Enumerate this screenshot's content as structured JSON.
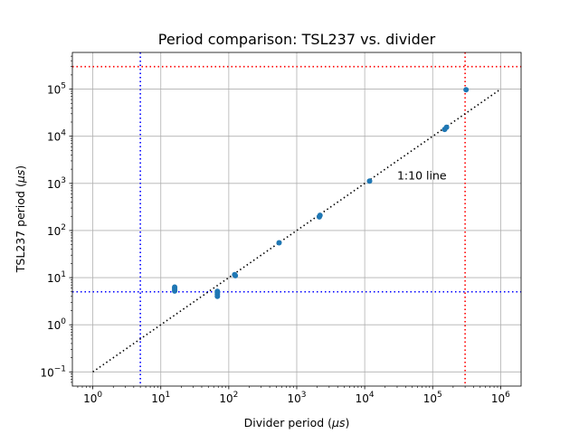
{
  "chart_data": {
    "type": "scatter",
    "title": "Period comparison: TSL237 vs. divider",
    "xlabel": "Divider period (",
    "xlabel_unit": "μs",
    "ylabel": "TSL237 period (",
    "ylabel_unit": "μs",
    "label_close": ")",
    "xscale": "log",
    "yscale": "log",
    "xlim": [
      0.5,
      2000000
    ],
    "ylim": [
      0.05,
      600000
    ],
    "grid": true,
    "x_ticks": [
      {
        "base": "10",
        "exp": "0",
        "value": 1
      },
      {
        "base": "10",
        "exp": "1",
        "value": 10
      },
      {
        "base": "10",
        "exp": "2",
        "value": 100
      },
      {
        "base": "10",
        "exp": "3",
        "value": 1000
      },
      {
        "base": "10",
        "exp": "4",
        "value": 10000
      },
      {
        "base": "10",
        "exp": "5",
        "value": 100000
      },
      {
        "base": "10",
        "exp": "6",
        "value": 1000000
      }
    ],
    "y_ticks": [
      {
        "base": "10",
        "exp": "−1",
        "value": 0.1
      },
      {
        "base": "10",
        "exp": "0",
        "value": 1
      },
      {
        "base": "10",
        "exp": "1",
        "value": 10
      },
      {
        "base": "10",
        "exp": "2",
        "value": 100
      },
      {
        "base": "10",
        "exp": "3",
        "value": 1000
      },
      {
        "base": "10",
        "exp": "4",
        "value": 10000
      },
      {
        "base": "10",
        "exp": "5",
        "value": 100000
      }
    ],
    "points": [
      {
        "x": 16,
        "y": 5.2
      },
      {
        "x": 16,
        "y": 5.6
      },
      {
        "x": 16,
        "y": 6.0
      },
      {
        "x": 16,
        "y": 6.3
      },
      {
        "x": 68,
        "y": 4.0
      },
      {
        "x": 68,
        "y": 4.4
      },
      {
        "x": 68,
        "y": 4.8
      },
      {
        "x": 68,
        "y": 5.1
      },
      {
        "x": 125,
        "y": 11
      },
      {
        "x": 122,
        "y": 11.6
      },
      {
        "x": 550,
        "y": 55
      },
      {
        "x": 2150,
        "y": 195
      },
      {
        "x": 2200,
        "y": 210
      },
      {
        "x": 11800,
        "y": 1120
      },
      {
        "x": 150000,
        "y": 14000
      },
      {
        "x": 160000,
        "y": 15500
      },
      {
        "x": 310000,
        "y": 97000
      }
    ],
    "point_color": "#1f77b4",
    "reference_line": {
      "x": [
        1,
        1000000
      ],
      "y": [
        0.1,
        100000
      ],
      "color": "#000000",
      "style": "dotted"
    },
    "annotation": {
      "text": "1:10 line",
      "x": 30000,
      "y": 1500
    },
    "thresholds": [
      {
        "axis": "x",
        "value": 5,
        "color": "#0000ff",
        "style": "dotted"
      },
      {
        "axis": "y",
        "value": 5,
        "color": "#0000ff",
        "style": "dotted"
      },
      {
        "axis": "x",
        "value": 300000,
        "color": "#ff0000",
        "style": "dotted"
      },
      {
        "axis": "y",
        "value": 300000,
        "color": "#ff0000",
        "style": "dotted"
      }
    ]
  }
}
